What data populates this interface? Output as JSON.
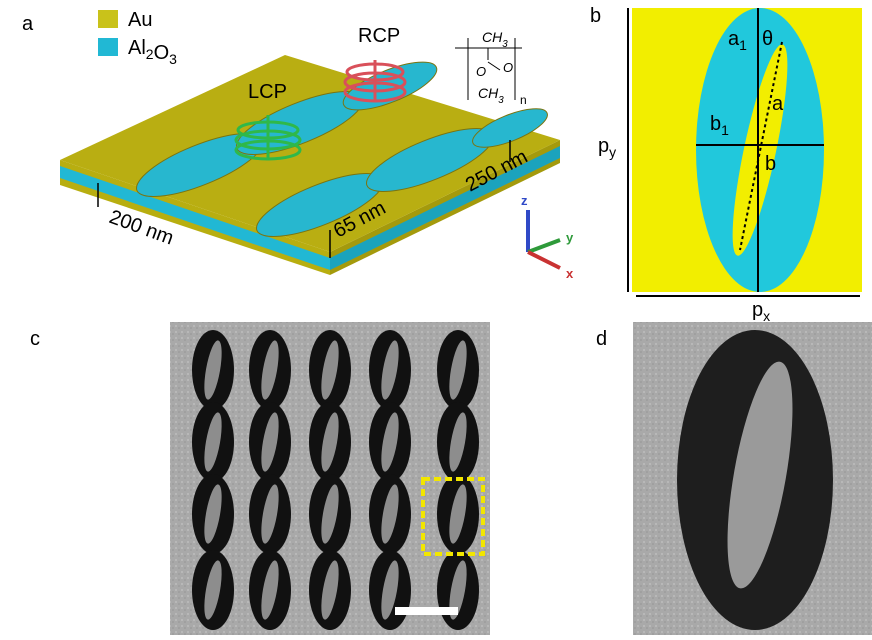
{
  "panel_a": {
    "label": "a",
    "legend": [
      {
        "segments": [
          {
            "text": "Au"
          }
        ]
      },
      {
        "segments": [
          {
            "text": "Al",
            "sub": "2"
          },
          {
            "text": "O",
            "sub": "3"
          }
        ]
      }
    ],
    "lcp": "LCP",
    "rcp": "RCP",
    "dimensions": [
      "200 nm",
      "65 nm",
      "250 nm"
    ],
    "axes": [
      "z",
      "y",
      "x"
    ],
    "formula": {
      "top": {
        "text": "CH",
        "sub": "3"
      },
      "o1": "O",
      "o2": "O",
      "bottom": {
        "text": "CH",
        "sub": "3"
      },
      "n": "n"
    }
  },
  "panel_b": {
    "label": "b",
    "a1": {
      "text": "a",
      "sub": "1"
    },
    "theta": "θ",
    "a": "a",
    "b1": {
      "text": "b",
      "sub": "1"
    },
    "b": "b",
    "py": {
      "text": "p",
      "sub": "y"
    },
    "px": {
      "text": "p",
      "sub": "x"
    }
  },
  "panel_c": {
    "label": "c"
  },
  "panel_d": {
    "label": "d"
  }
}
